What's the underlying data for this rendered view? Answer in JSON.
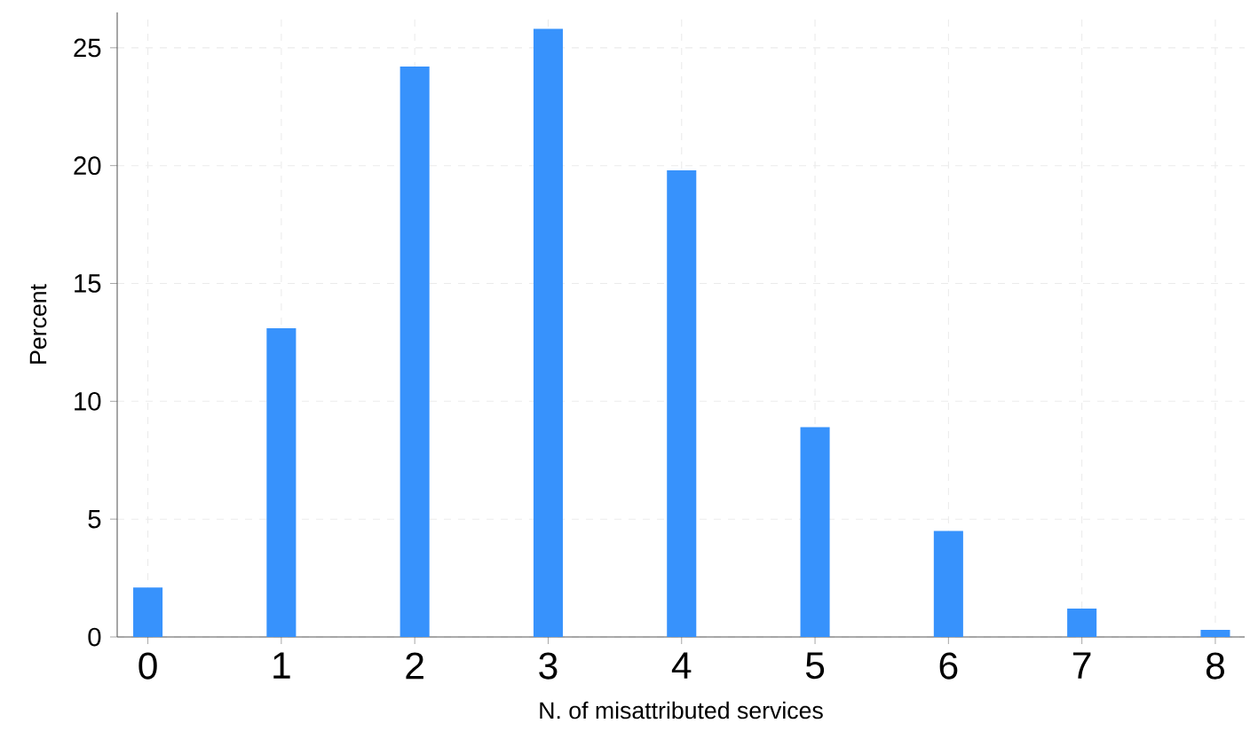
{
  "chart_data": {
    "type": "bar",
    "xlabel": "N. of misattributed services",
    "ylabel": "Percent",
    "x": [
      0,
      1,
      2,
      3,
      4,
      5,
      6,
      7,
      8
    ],
    "values": [
      2.1,
      13.1,
      24.2,
      25.8,
      19.8,
      8.9,
      4.5,
      1.2,
      0.3
    ],
    "color": "#3792fc",
    "xlim": [
      -0.23,
      8.22
    ],
    "ylim": [
      0,
      26.5
    ],
    "xticks": [
      0,
      1,
      2,
      3,
      4,
      5,
      6,
      7,
      8
    ],
    "yticks": [
      0,
      5,
      10,
      15,
      20,
      25
    ],
    "grid": true
  }
}
